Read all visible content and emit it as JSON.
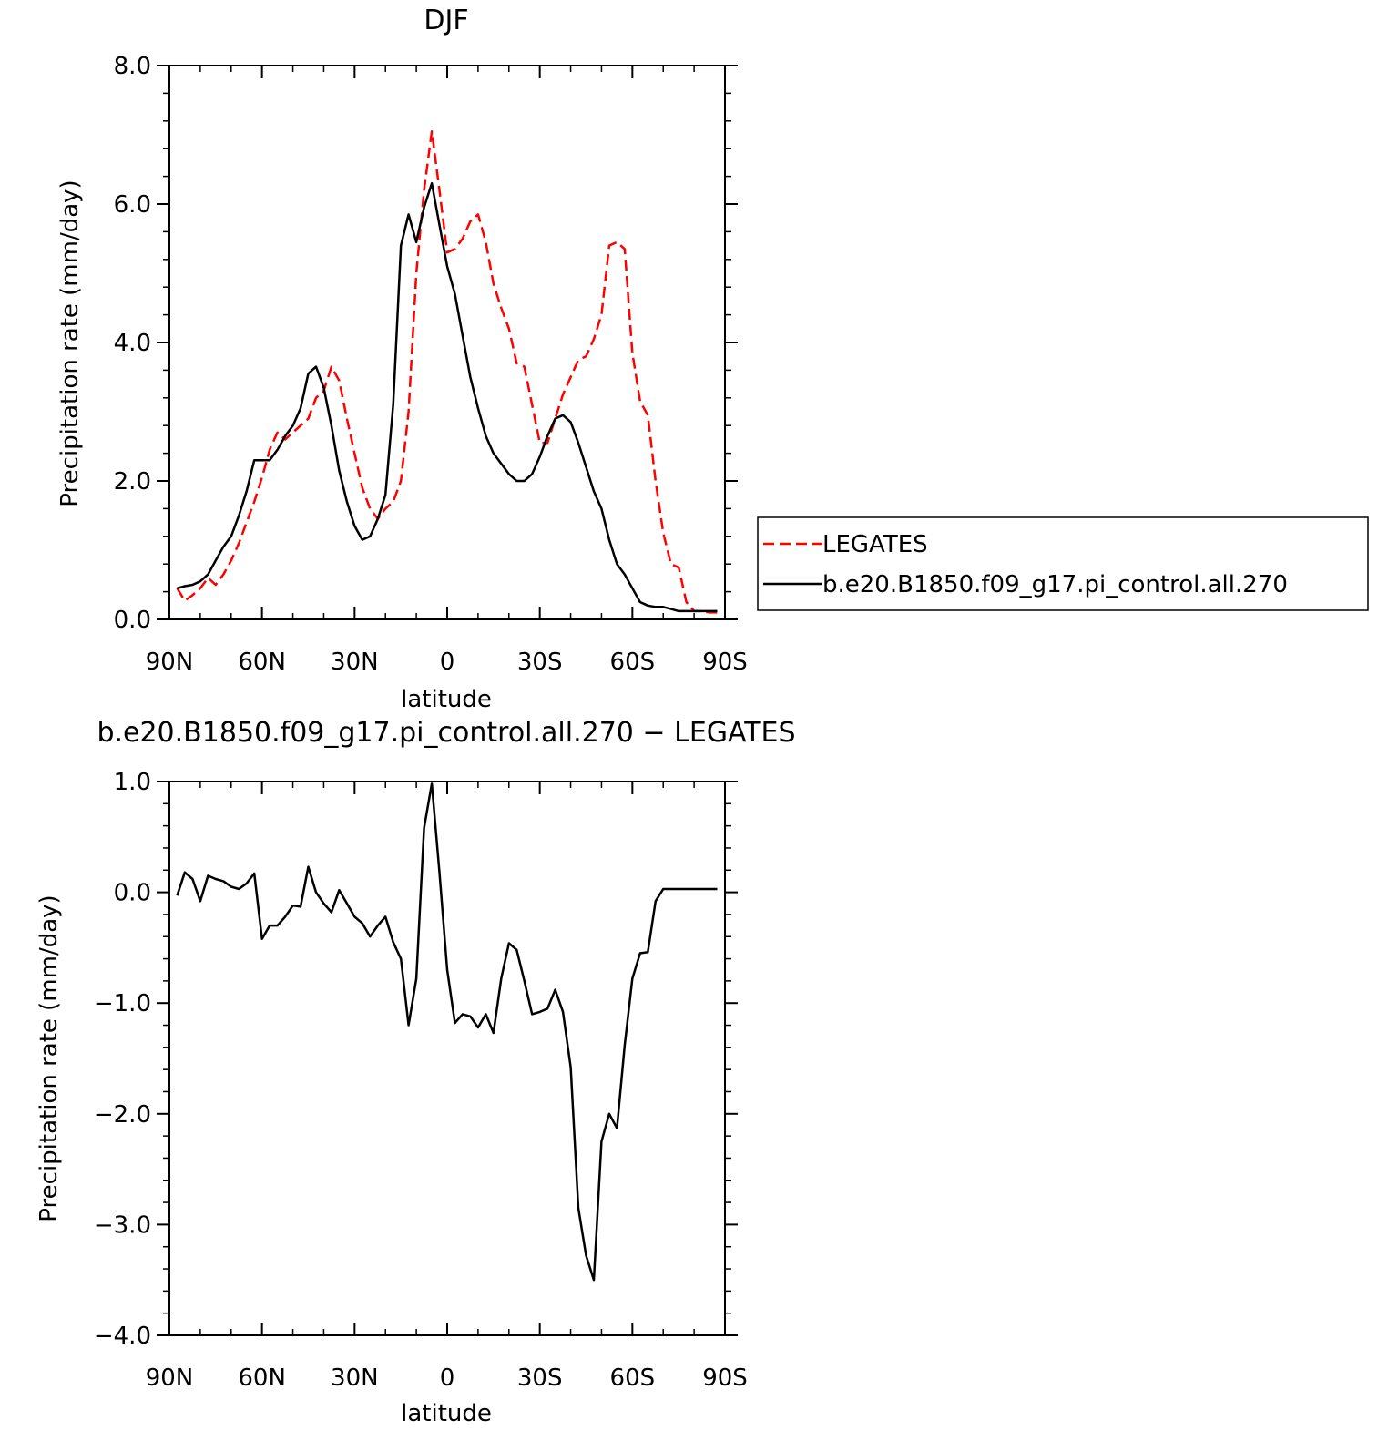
{
  "chart_data": [
    {
      "type": "line",
      "title": "DJF",
      "xlabel": "latitude",
      "ylabel": "Precipitation rate (mm/day)",
      "xlim": [
        -90,
        90
      ],
      "ylim": [
        0,
        8
      ],
      "x_ticks": [
        -90,
        -60,
        -30,
        0,
        30,
        60,
        90
      ],
      "x_tick_labels": [
        "90N",
        "60N",
        "30N",
        "0",
        "30S",
        "60S",
        "90S"
      ],
      "y_ticks": [
        0,
        2,
        4,
        6,
        8
      ],
      "y_tick_labels": [
        "0.0",
        "2.0",
        "4.0",
        "6.0",
        "8.0"
      ],
      "grid": false,
      "legend_position": "right",
      "x": [
        -87.5,
        -85,
        -82.5,
        -80,
        -77.5,
        -75,
        -72.5,
        -70,
        -67.5,
        -65,
        -62.5,
        -60,
        -57.5,
        -55,
        -52.5,
        -50,
        -47.5,
        -45,
        -42.5,
        -40,
        -37.5,
        -35,
        -32.5,
        -30,
        -27.5,
        -25,
        -22.5,
        -20,
        -17.5,
        -15,
        -12.5,
        -10,
        -7.5,
        -5,
        -2.5,
        0,
        2.5,
        5,
        7.5,
        10,
        12.5,
        15,
        17.5,
        20,
        22.5,
        25,
        27.5,
        30,
        32.5,
        35,
        37.5,
        40,
        42.5,
        45,
        47.5,
        50,
        52.5,
        55,
        57.5,
        60,
        62.5,
        65,
        67.5,
        70,
        72.5,
        75,
        77.5,
        80,
        82.5,
        85,
        87.5
      ],
      "series": [
        {
          "name": "LEGATES",
          "color": "#ff0000",
          "dash": "dashed",
          "values": [
            0.45,
            0.27,
            0.35,
            0.45,
            0.6,
            0.5,
            0.65,
            0.85,
            1.1,
            1.4,
            1.7,
            2.05,
            2.45,
            2.7,
            2.6,
            2.7,
            2.8,
            2.9,
            3.2,
            3.3,
            3.65,
            3.45,
            2.9,
            2.4,
            1.9,
            1.6,
            1.45,
            1.6,
            1.7,
            2.0,
            3.0,
            5.0,
            6.2,
            7.05,
            6.2,
            5.3,
            5.35,
            5.5,
            5.75,
            5.85,
            5.45,
            4.85,
            4.5,
            4.2,
            3.7,
            3.65,
            3.1,
            2.55,
            2.55,
            2.9,
            3.25,
            3.5,
            3.75,
            3.8,
            4.05,
            4.4,
            5.4,
            5.45,
            5.35,
            3.85,
            3.15,
            2.95,
            2.0,
            1.25,
            0.8,
            0.75,
            0.25,
            0.12,
            0.12,
            0.1,
            0.1
          ]
        },
        {
          "name": "b.e20.B1850.f09_g17.pi_control.all.270",
          "color": "#000000",
          "dash": "solid",
          "values": [
            0.45,
            0.48,
            0.5,
            0.55,
            0.65,
            0.85,
            1.05,
            1.2,
            1.5,
            1.85,
            2.3,
            2.3,
            2.3,
            2.45,
            2.65,
            2.8,
            3.05,
            3.55,
            3.65,
            3.35,
            2.8,
            2.15,
            1.7,
            1.35,
            1.15,
            1.2,
            1.45,
            1.8,
            3.1,
            5.4,
            5.85,
            5.45,
            5.95,
            6.3,
            5.7,
            5.1,
            4.7,
            4.1,
            3.5,
            3.05,
            2.65,
            2.4,
            2.25,
            2.1,
            2.0,
            2.0,
            2.1,
            2.35,
            2.65,
            2.9,
            2.95,
            2.85,
            2.55,
            2.2,
            1.85,
            1.6,
            1.15,
            0.8,
            0.65,
            0.45,
            0.25,
            0.2,
            0.18,
            0.18,
            0.15,
            0.12,
            0.12,
            0.12,
            0.12,
            0.12,
            0.12
          ]
        }
      ]
    },
    {
      "type": "line",
      "title": "b.e20.B1850.f09_g17.pi_control.all.270 − LEGATES",
      "xlabel": "latitude",
      "ylabel": "Precipitation rate (mm/day)",
      "xlim": [
        -90,
        90
      ],
      "ylim": [
        -4,
        1
      ],
      "x_ticks": [
        -90,
        -60,
        -30,
        0,
        30,
        60,
        90
      ],
      "x_tick_labels": [
        "90N",
        "60N",
        "30N",
        "0",
        "30S",
        "60S",
        "90S"
      ],
      "y_ticks": [
        -4,
        -3,
        -2,
        -1,
        0,
        1
      ],
      "y_tick_labels": [
        "−4.0",
        "−3.0",
        "−2.0",
        "−1.0",
        "0.0",
        "1.0"
      ],
      "grid": false,
      "x": [
        -87.5,
        -85,
        -82.5,
        -80,
        -77.5,
        -75,
        -72.5,
        -70,
        -67.5,
        -65,
        -62.5,
        -60,
        -57.5,
        -55,
        -52.5,
        -50,
        -47.5,
        -45,
        -42.5,
        -40,
        -37.5,
        -35,
        -32.5,
        -30,
        -27.5,
        -25,
        -22.5,
        -20,
        -17.5,
        -15,
        -12.5,
        -10,
        -7.5,
        -5,
        -2.5,
        0,
        2.5,
        5,
        7.5,
        10,
        12.5,
        15,
        17.5,
        20,
        22.5,
        25,
        27.5,
        30,
        32.5,
        35,
        37.5,
        40,
        42.5,
        45,
        47.5,
        50,
        52.5,
        55,
        57.5,
        60,
        62.5,
        65,
        67.5,
        70,
        72.5,
        75,
        77.5,
        80,
        82.5,
        85,
        87.5
      ],
      "series": [
        {
          "color": "#000000",
          "dash": "solid",
          "values": [
            -0.03,
            0.18,
            0.12,
            -0.08,
            0.15,
            0.12,
            0.1,
            0.05,
            0.03,
            0.08,
            0.17,
            -0.42,
            -0.3,
            -0.3,
            -0.22,
            -0.12,
            -0.13,
            0.23,
            0.0,
            -0.1,
            -0.18,
            0.02,
            -0.1,
            -0.22,
            -0.28,
            -0.4,
            -0.3,
            -0.22,
            -0.45,
            -0.6,
            -1.2,
            -0.78,
            0.58,
            0.98,
            0.18,
            -0.7,
            -1.18,
            -1.1,
            -1.12,
            -1.22,
            -1.1,
            -1.27,
            -0.78,
            -0.46,
            -0.52,
            -0.8,
            -1.1,
            -1.08,
            -1.05,
            -0.88,
            -1.08,
            -1.58,
            -2.85,
            -3.28,
            -3.5,
            -2.25,
            -2.0,
            -2.13,
            -1.38,
            -0.78,
            -0.55,
            -0.54,
            -0.08,
            0.03,
            0.03,
            0.03,
            0.03,
            0.03,
            0.03,
            0.03,
            0.03
          ]
        }
      ]
    }
  ]
}
